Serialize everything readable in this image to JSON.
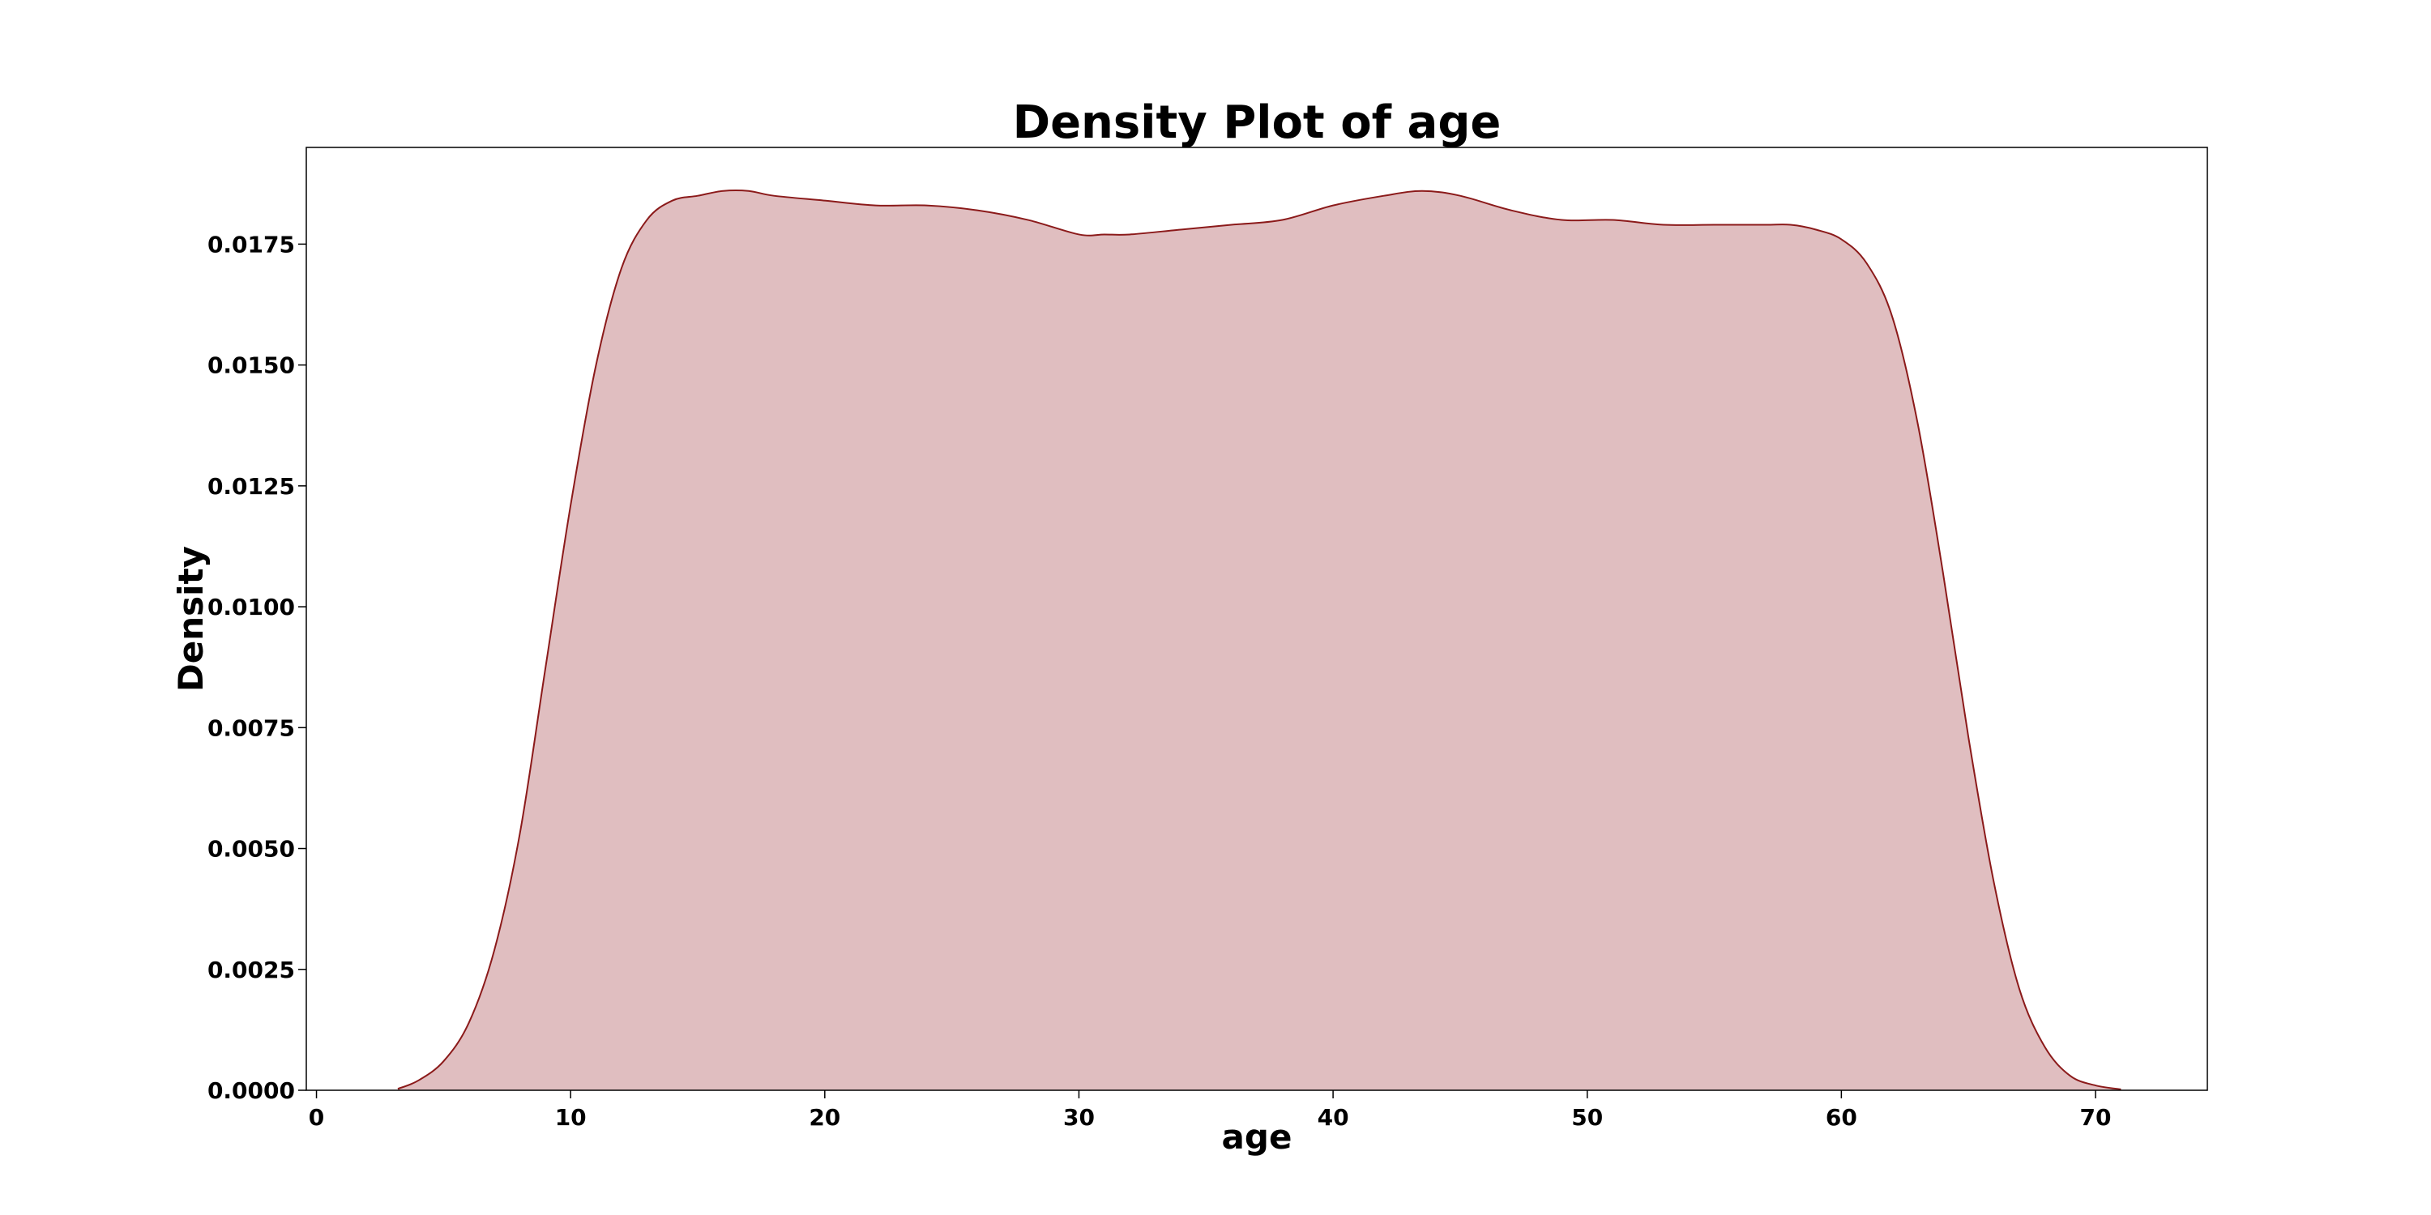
{
  "chart_data": {
    "type": "area",
    "title": "Density Plot of age",
    "xlabel": "age",
    "ylabel": "Density",
    "xlim": [
      -0.4,
      74.4
    ],
    "ylim": [
      0,
      0.0195
    ],
    "xticks": [
      0,
      10,
      20,
      30,
      40,
      50,
      60,
      70
    ],
    "xtick_labels": [
      "0",
      "10",
      "20",
      "30",
      "40",
      "50",
      "60",
      "70"
    ],
    "yticks": [
      0,
      0.0025,
      0.005,
      0.0075,
      0.01,
      0.0125,
      0.015,
      0.0175
    ],
    "ytick_labels": [
      "0.0000",
      "0.0025",
      "0.0050",
      "0.0075",
      "0.0100",
      "0.0125",
      "0.0150",
      "0.0175"
    ],
    "grid": false,
    "legend": "none",
    "colors": {
      "fill": "#e0bec0",
      "line": "#8b1a1a"
    },
    "series": [
      {
        "x": [
          3.2,
          4,
          5,
          6,
          7,
          8,
          9,
          10,
          11,
          12,
          13,
          14,
          15,
          16,
          17,
          18,
          20,
          22,
          24,
          26,
          28,
          30,
          31,
          32,
          34,
          36,
          38,
          40,
          42,
          43.5,
          45,
          47,
          49,
          51,
          53,
          55,
          57,
          58,
          59,
          60,
          61,
          62,
          63,
          64,
          65,
          66,
          67,
          68,
          69,
          70,
          71
        ],
        "y": [
          3e-05,
          0.0002,
          0.0006,
          0.0014,
          0.0029,
          0.0053,
          0.0087,
          0.0121,
          0.015,
          0.017,
          0.018,
          0.0184,
          0.0185,
          0.0186,
          0.0186,
          0.0185,
          0.0184,
          0.0183,
          0.0183,
          0.0182,
          0.018,
          0.0177,
          0.0177,
          0.0177,
          0.0178,
          0.0179,
          0.018,
          0.0183,
          0.0185,
          0.0186,
          0.0185,
          0.0182,
          0.018,
          0.018,
          0.0179,
          0.0179,
          0.0179,
          0.0179,
          0.0178,
          0.0176,
          0.0171,
          0.016,
          0.0138,
          0.0107,
          0.0073,
          0.0043,
          0.0021,
          0.0009,
          0.0003,
          0.0001,
          2e-05
        ]
      }
    ]
  }
}
